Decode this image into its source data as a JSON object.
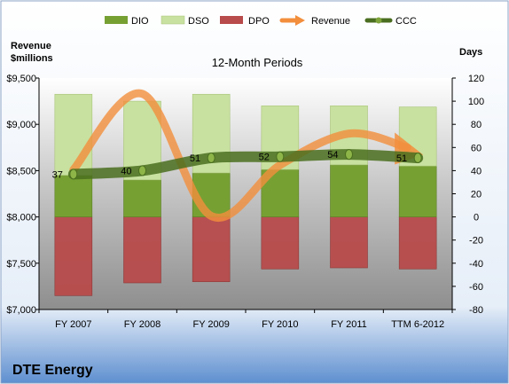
{
  "chart_data": {
    "type": "bar",
    "title": "12-Month Periods",
    "company": "DTE Energy",
    "categories": [
      "FY 2007",
      "FY 2008",
      "FY 2009",
      "FY 2010",
      "FY 2011",
      "TTM 6-2012"
    ],
    "left_axis": {
      "title_line1": "Revenue",
      "title_line2": "$millions",
      "range": [
        7000,
        9500
      ],
      "ticks": [
        7000,
        7500,
        8000,
        8500,
        9000,
        9500
      ],
      "tick_labels": [
        "$7,000",
        "$7,500",
        "$8,000",
        "$8,500",
        "$9,000",
        "$9,500"
      ]
    },
    "right_axis": {
      "title": "Days",
      "range": [
        -80,
        120
      ],
      "ticks": [
        -80,
        -60,
        -40,
        -20,
        0,
        20,
        40,
        60,
        80,
        100,
        120
      ],
      "tick_labels": [
        "-80",
        "-60",
        "-40",
        "-20",
        "0",
        "20",
        "40",
        "60",
        "80",
        "100",
        "120"
      ]
    },
    "legend_position": "top",
    "grid": false,
    "series": [
      {
        "name": "DIO",
        "type": "stacked-bar",
        "axis": "right",
        "color": "#77A033",
        "values": [
          36,
          32,
          38,
          41,
          45,
          44
        ]
      },
      {
        "name": "DSO",
        "type": "stacked-bar",
        "axis": "right",
        "color": "#C8E1A0",
        "values": [
          70,
          68,
          68,
          55,
          51,
          51
        ]
      },
      {
        "name": "DPO",
        "type": "stacked-bar-negative",
        "axis": "right",
        "color": "#B84B4B",
        "values": [
          -68,
          -57,
          -56,
          -45,
          -44,
          -45
        ]
      },
      {
        "name": "Revenue",
        "type": "line",
        "axis": "left",
        "color": "#F28E3C",
        "values": [
          8510,
          9330,
          8010,
          8560,
          8900,
          8700
        ]
      },
      {
        "name": "CCC",
        "type": "line",
        "axis": "right",
        "color": "#4A6E1F",
        "values": [
          37,
          40,
          51,
          52,
          54,
          51
        ],
        "labels": [
          "37",
          "40",
          "51",
          "52",
          "54",
          "51"
        ]
      }
    ]
  }
}
